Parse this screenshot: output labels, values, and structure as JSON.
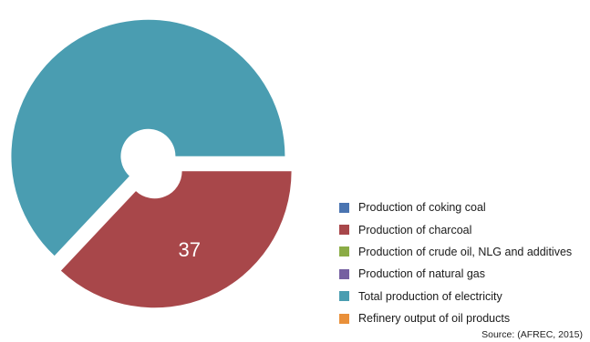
{
  "chart_data": {
    "type": "pie",
    "title": "",
    "slices": [
      {
        "name": "Total production of electricity",
        "value": 63,
        "color": "#4a9db1",
        "label": ""
      },
      {
        "name": "Production of charcoal",
        "value": 37,
        "color": "#a8474a",
        "label": "37"
      }
    ],
    "legend": {
      "placement": "right",
      "entries": [
        {
          "label": "Production of coking coal",
          "color": "#4a74b1"
        },
        {
          "label": "Production of charcoal",
          "color": "#a8474a"
        },
        {
          "label": "Production of crude oil, NLG and additives",
          "color": "#8bac46"
        },
        {
          "label": "Production of natural gas",
          "color": "#7660a1"
        },
        {
          "label": "Total production of electricity",
          "color": "#4a9db1"
        },
        {
          "label": "Refinery output of oil products",
          "color": "#e9903a"
        }
      ]
    },
    "label_color": "#ffffff",
    "source": "Source: (AFREC, 2015)"
  }
}
